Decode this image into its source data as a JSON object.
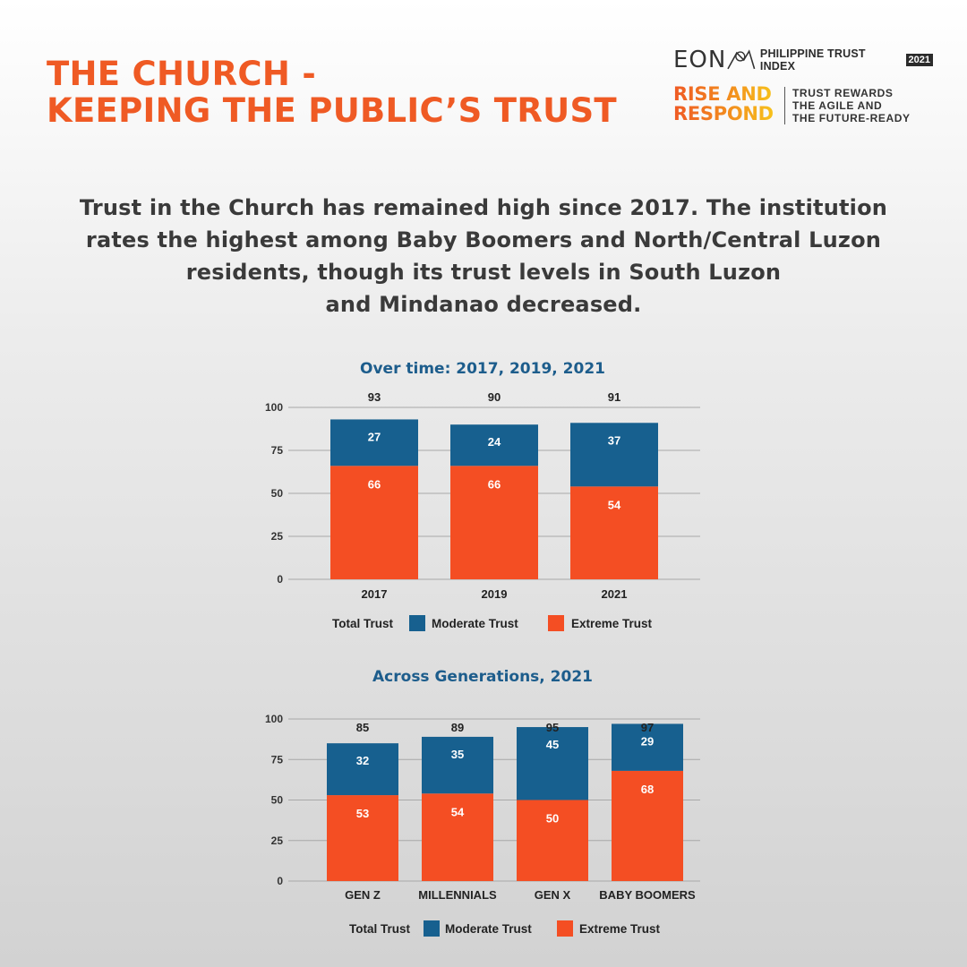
{
  "header": {
    "title_lines": [
      "THE CHURCH -",
      "KEEPING THE PUBLIC’S TRUST"
    ]
  },
  "logo": {
    "brand": "EON",
    "index_label": "PHILIPPINE TRUST INDEX",
    "year": "2021",
    "campaign_lines": [
      "RISE AND",
      "RESPOND"
    ],
    "tagline_lines": [
      "TRUST REWARDS",
      "THE AGILE AND",
      "THE FUTURE-READY"
    ]
  },
  "description_lines": [
    "Trust in the Church has remained high since 2017. The institution",
    "rates the highest among Baby Boomers and North/Central Luzon",
    "residents, though its trust levels in South Luzon",
    "and Mindanao decreased."
  ],
  "colors": {
    "extreme": "#f44e23",
    "moderate": "#17608f",
    "title": "#ef5a24",
    "chart_title": "#1d5d8c",
    "grid": "#a8a8a8"
  },
  "chart_data": [
    {
      "type": "bar",
      "stacked": true,
      "title": "Over time: 2017, 2019, 2021",
      "categories": [
        "2017",
        "2019",
        "2021"
      ],
      "series": [
        {
          "name": "Extreme Trust",
          "values": [
            66,
            66,
            54
          ]
        },
        {
          "name": "Moderate Trust",
          "values": [
            27,
            24,
            37
          ]
        }
      ],
      "totals": [
        93,
        90,
        91
      ],
      "total_label": "Total Trust",
      "yticks": [
        0,
        25,
        50,
        75,
        100
      ],
      "ylim": [
        0,
        100
      ],
      "grid": true,
      "legend": [
        "Total Trust",
        "Moderate Trust",
        "Extreme Trust"
      ]
    },
    {
      "type": "bar",
      "stacked": true,
      "title": "Across Generations, 2021",
      "categories": [
        "GEN Z",
        "MILLENNIALS",
        "GEN X",
        "BABY BOOMERS"
      ],
      "series": [
        {
          "name": "Extreme Trust",
          "values": [
            53,
            54,
            50,
            68
          ]
        },
        {
          "name": "Moderate Trust",
          "values": [
            32,
            35,
            45,
            29
          ]
        }
      ],
      "totals": [
        85,
        89,
        95,
        97
      ],
      "total_label": "Total Trust",
      "yticks": [
        0,
        25,
        50,
        75,
        100
      ],
      "ylim": [
        0,
        100
      ],
      "grid": true,
      "legend": [
        "Total Trust",
        "Moderate Trust",
        "Extreme Trust"
      ]
    }
  ]
}
